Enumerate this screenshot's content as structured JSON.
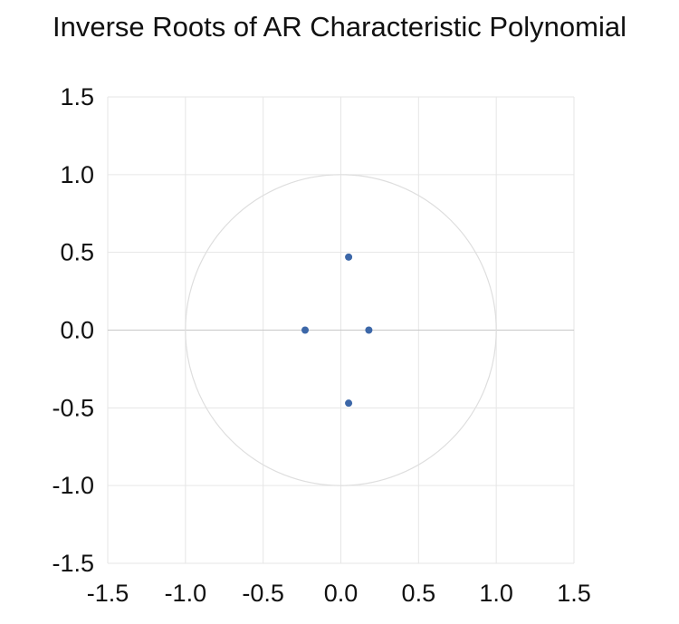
{
  "chart_data": {
    "type": "scatter",
    "title": "Inverse Roots of AR Characteristic Polynomial",
    "xlabel": "",
    "ylabel": "",
    "xlim": [
      -1.5,
      1.5
    ],
    "ylim": [
      -1.5,
      1.5
    ],
    "x_ticks": [
      "-1.5",
      "-1.0",
      "-0.5",
      "0.0",
      "0.5",
      "1.0",
      "1.5"
    ],
    "y_ticks": [
      "1.5",
      "1.0",
      "0.5",
      "0.0",
      "-0.5",
      "-1.0",
      "-1.5"
    ],
    "grid": true,
    "unit_circle": true,
    "series": [
      {
        "points": [
          {
            "x": 0.05,
            "y": 0.47
          },
          {
            "x": -0.23,
            "y": 0.0
          },
          {
            "x": 0.18,
            "y": 0.0
          },
          {
            "x": 0.05,
            "y": -0.47
          }
        ]
      }
    ],
    "colors": {
      "points": "#3c67a8",
      "grid": "#e6e6e6",
      "circle": "#dedede",
      "zero_axis": "#c8c8c8"
    }
  }
}
